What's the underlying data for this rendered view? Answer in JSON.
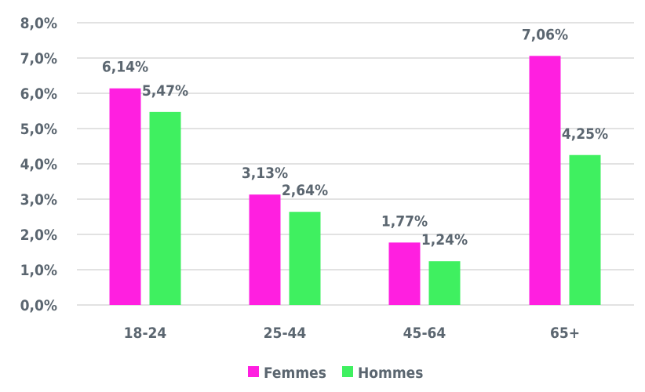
{
  "chart_data": {
    "type": "bar",
    "title": "",
    "xlabel": "",
    "ylabel": "",
    "categories": [
      "18-24",
      "25-44",
      "45-64",
      "65+"
    ],
    "series": [
      {
        "name": "Femmes",
        "color": "#ff1fe0",
        "values": [
          6.14,
          3.13,
          1.77,
          7.06
        ],
        "labels": [
          "6,14%",
          "3,13%",
          "1,77%",
          "7,06%"
        ]
      },
      {
        "name": "Hommes",
        "color": "#3ff060",
        "values": [
          5.47,
          2.64,
          1.24,
          4.25
        ],
        "labels": [
          "5,47%",
          "2,64%",
          "1,24%",
          "4,25%"
        ]
      }
    ],
    "ylim": [
      0,
      8
    ],
    "yticks": [
      0,
      1,
      2,
      3,
      4,
      5,
      6,
      7,
      8
    ],
    "ytick_labels": [
      "0,0%",
      "1,0%",
      "2,0%",
      "3,0%",
      "4,0%",
      "5,0%",
      "6,0%",
      "7,0%",
      "8,0%"
    ],
    "grid": true,
    "gridline_color": "#d9d9d9",
    "legend": "bottom"
  }
}
